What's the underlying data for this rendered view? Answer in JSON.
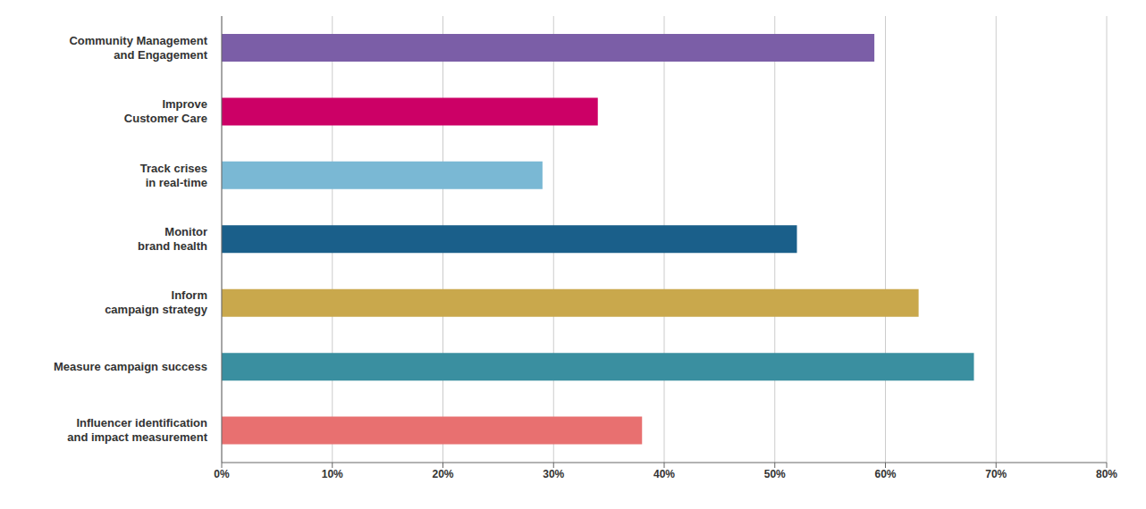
{
  "chart_data": {
    "type": "bar",
    "orientation": "horizontal",
    "categories": [
      "Community Management\nand Engagement",
      "Improve\nCustomer Care",
      "Track crises\nin real-time",
      "Monitor\nbrand health",
      "Inform\ncampaign strategy",
      "Measure campaign success",
      "Influencer identification\nand impact measurement"
    ],
    "values": [
      59,
      34,
      29,
      52,
      63,
      68,
      38
    ],
    "colors": [
      "#7b5ea7",
      "#cc0066",
      "#7ab8d4",
      "#1a5f8a",
      "#c9a84c",
      "#3a8fa0",
      "#e87070"
    ],
    "xlim": [
      0,
      80
    ],
    "xticks": [
      {
        "value": 0,
        "label": "0%"
      },
      {
        "value": 10,
        "label": "10%"
      },
      {
        "value": 20,
        "label": "20%"
      },
      {
        "value": 30,
        "label": "30%"
      },
      {
        "value": 40,
        "label": "40%"
      },
      {
        "value": 50,
        "label": "50%"
      },
      {
        "value": 60,
        "label": "60%"
      },
      {
        "value": 70,
        "label": "70%"
      },
      {
        "value": 80,
        "label": "80%"
      }
    ],
    "grid": true
  }
}
